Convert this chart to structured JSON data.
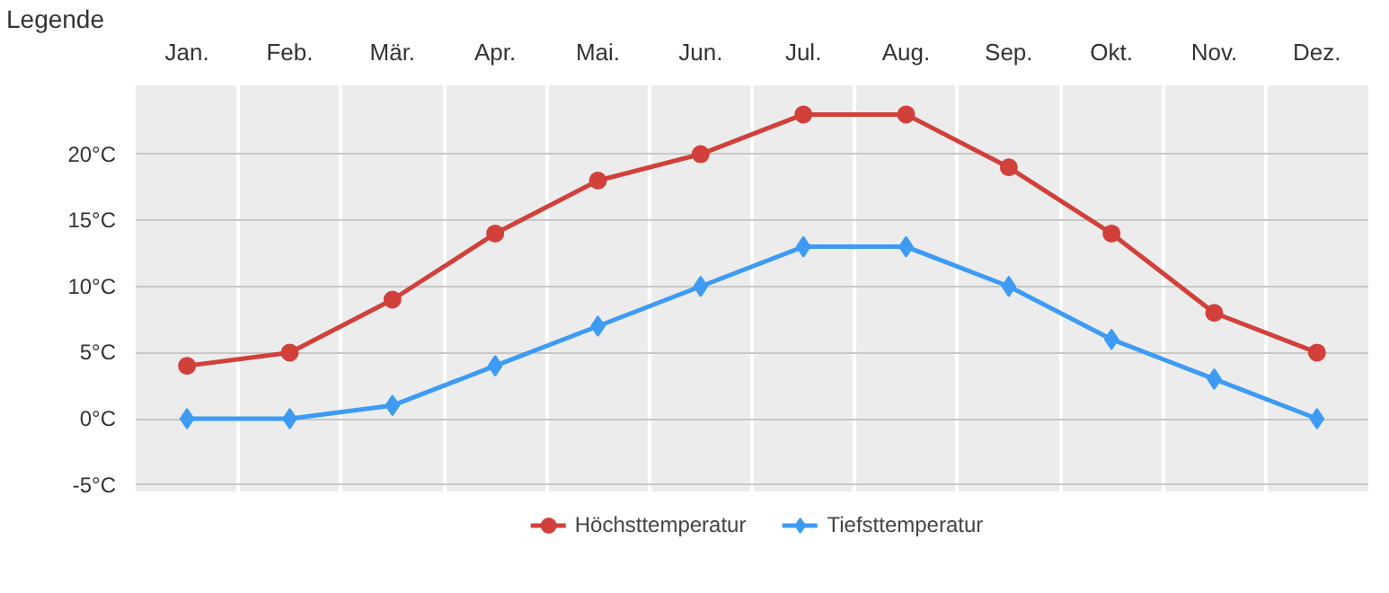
{
  "chart_data": {
    "type": "line",
    "categories": [
      "Jan.",
      "Feb.",
      "Mär.",
      "Apr.",
      "Mai.",
      "Jun.",
      "Jul.",
      "Aug.",
      "Sep.",
      "Okt.",
      "Nov.",
      "Dez."
    ],
    "series": [
      {
        "name": "Höchsttemperatur",
        "color": "#d1403a",
        "marker": "circle",
        "values": [
          4,
          5,
          9,
          14,
          18,
          20,
          23,
          23,
          19,
          14,
          8,
          5
        ]
      },
      {
        "name": "Tiefsttemperatur",
        "color": "#3d9bf5",
        "marker": "diamond",
        "values": [
          0,
          0,
          1,
          4,
          7,
          10,
          13,
          13,
          10,
          6,
          3,
          0
        ]
      }
    ],
    "ylim": [
      -5.5,
      25.2
    ],
    "yticks": [
      {
        "value": -5,
        "label": "-5°C"
      },
      {
        "value": 0,
        "label": "0°C"
      },
      {
        "value": 5,
        "label": "5°C"
      },
      {
        "value": 10,
        "label": "10°C"
      },
      {
        "value": 15,
        "label": "15°C"
      },
      {
        "value": 20,
        "label": "20°C"
      }
    ],
    "annotations": [
      "Legende"
    ],
    "grid": true,
    "legend": "bottom",
    "line_style": "solid"
  }
}
